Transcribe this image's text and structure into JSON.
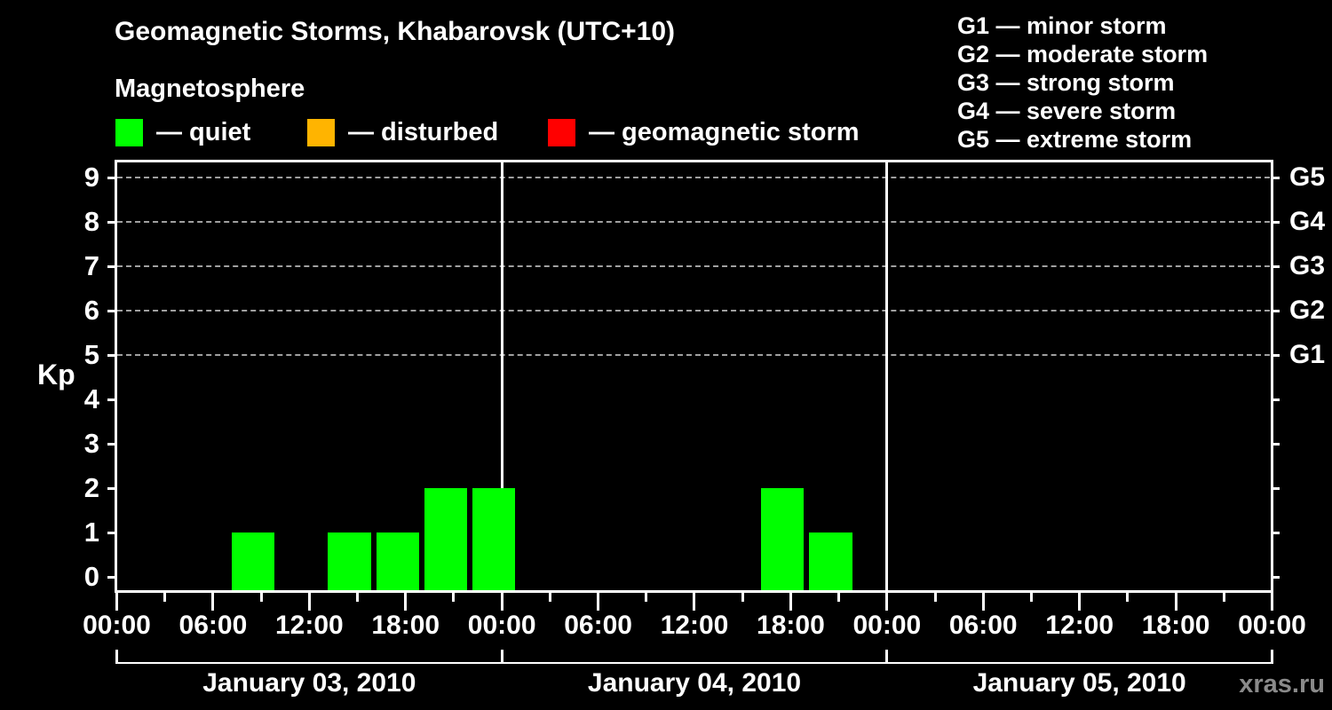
{
  "header": {
    "title": "Geomagnetic Storms, Khabarovsk (UTC+10)",
    "subtitle": "Magnetosphere"
  },
  "legend": {
    "items": [
      {
        "name": "quiet",
        "label": "— quiet",
        "color": "#00ff00"
      },
      {
        "name": "disturbed",
        "label": "— disturbed",
        "color": "#ffb400"
      },
      {
        "name": "geomagnetic-storm",
        "label": "— geomagnetic storm",
        "color": "#ff0000"
      }
    ]
  },
  "storm_scale_legend": {
    "lines": [
      "G1 — minor storm",
      "G2 — moderate storm",
      "G3 — strong storm",
      "G4 — severe storm",
      "G5 — extreme storm"
    ]
  },
  "axes": {
    "y_label": "Kp"
  },
  "watermark": "xras.ru",
  "chart_data": {
    "type": "bar",
    "title": "Geomagnetic Storms, Khabarovsk (UTC+10)",
    "subtitle": "Magnetosphere",
    "ylabel": "Kp",
    "ylim": [
      0,
      9
    ],
    "yticks": [
      0,
      1,
      2,
      3,
      4,
      5,
      6,
      7,
      8,
      9
    ],
    "grid": "dashed horizontal lines at Kp 5-9 only",
    "grid_kp_levels": [
      5,
      6,
      7,
      8,
      9
    ],
    "grid_color": "#a0a0a0",
    "right_axis": [
      {
        "kp": 5,
        "label": "G1"
      },
      {
        "kp": 6,
        "label": "G2"
      },
      {
        "kp": 7,
        "label": "G3"
      },
      {
        "kp": 8,
        "label": "G4"
      },
      {
        "kp": 9,
        "label": "G5"
      }
    ],
    "x_hours_total": 72,
    "x_minor_tick_h": 3,
    "x_major_tick_h": 6,
    "x_labels": [
      "00:00",
      "06:00",
      "12:00",
      "18:00",
      "00:00",
      "06:00",
      "12:00",
      "18:00",
      "00:00",
      "06:00",
      "12:00",
      "18:00",
      "00:00"
    ],
    "days": [
      {
        "label": "January 03, 2010",
        "start_hour": 0
      },
      {
        "label": "January 04, 2010",
        "start_hour": 24
      },
      {
        "label": "January 05, 2010",
        "start_hour": 48
      }
    ],
    "bars": [
      {
        "start_hour": 7,
        "duration_h": 3,
        "kp": 1,
        "status": "quiet",
        "color": "#00ff00"
      },
      {
        "start_hour": 13,
        "duration_h": 3,
        "kp": 1,
        "status": "quiet",
        "color": "#00ff00"
      },
      {
        "start_hour": 16,
        "duration_h": 3,
        "kp": 1,
        "status": "quiet",
        "color": "#00ff00"
      },
      {
        "start_hour": 19,
        "duration_h": 3,
        "kp": 2,
        "status": "quiet",
        "color": "#00ff00"
      },
      {
        "start_hour": 22,
        "duration_h": 3,
        "kp": 2,
        "status": "quiet",
        "color": "#00ff00"
      },
      {
        "start_hour": 40,
        "duration_h": 3,
        "kp": 2,
        "status": "quiet",
        "color": "#00ff00"
      },
      {
        "start_hour": 43,
        "duration_h": 3,
        "kp": 1,
        "status": "quiet",
        "color": "#00ff00"
      }
    ]
  }
}
